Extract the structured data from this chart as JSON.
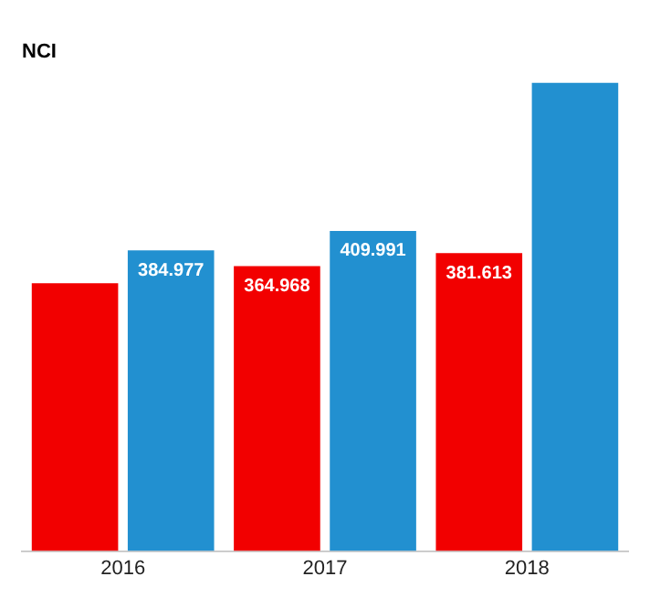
{
  "chart_data": {
    "type": "bar",
    "title": "NCI",
    "categories": [
      "2016",
      "2017",
      "2018"
    ],
    "series": [
      {
        "color": "#f20000",
        "values": [
          343,
          364.968,
          381.613
        ],
        "value_labels": [
          null,
          "364.968",
          "381.613"
        ]
      },
      {
        "color": "#2290d0",
        "values": [
          384.977,
          409.991,
          600
        ],
        "value_labels": [
          "384.977",
          "409.991",
          null
        ]
      }
    ],
    "tick_labels": "x",
    "grid": false,
    "legend": false
  }
}
